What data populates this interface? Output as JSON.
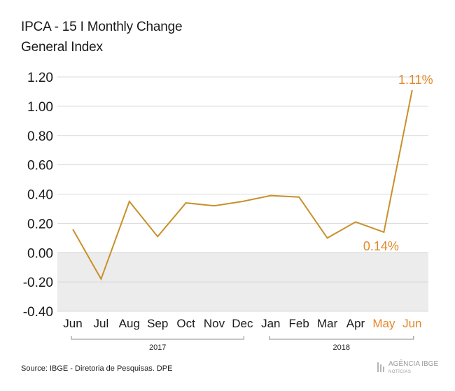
{
  "header": {
    "title": "IPCA - 15 I Monthly Change",
    "subtitle": "General Index"
  },
  "footer": {
    "source": "Source: IBGE - Diretoria de Pesquisas. DPE",
    "logo_main": "AGÊNCIA IBGE",
    "logo_sub": "NOTÍCIAS"
  },
  "colors": {
    "line": "#c8902a",
    "highlight": "#e3882a",
    "negative_band": "#ececec",
    "grid": "#d9d9d9",
    "text": "#1a1a1a"
  },
  "chart_data": {
    "type": "line",
    "title": "IPCA - 15 I Monthly Change",
    "subtitle": "General Index",
    "categories": [
      "Jun",
      "Jul",
      "Aug",
      "Sep",
      "Oct",
      "Nov",
      "Dec",
      "Jan",
      "Feb",
      "Mar",
      "Apr",
      "May",
      "Jun"
    ],
    "highlighted_categories": [
      11,
      12
    ],
    "year_groups": [
      {
        "label": "2017",
        "from": 0,
        "to": 6
      },
      {
        "label": "2018",
        "from": 7,
        "to": 12
      }
    ],
    "series": [
      {
        "values": [
          0.16,
          -0.18,
          0.35,
          0.11,
          0.34,
          0.32,
          0.35,
          0.39,
          0.38,
          0.1,
          0.21,
          0.14,
          1.11
        ]
      }
    ],
    "data_labels": [
      {
        "index": 11,
        "text": "0.14%"
      },
      {
        "index": 12,
        "text": "1.11%"
      }
    ],
    "yticks": [
      "1.20",
      "1.00",
      "0.80",
      "0.60",
      "0.40",
      "0.20",
      "0.00",
      "-0.20",
      "-0.40"
    ],
    "ylim": [
      -0.4,
      1.2
    ],
    "grid": true,
    "negative_region_shaded": true
  }
}
